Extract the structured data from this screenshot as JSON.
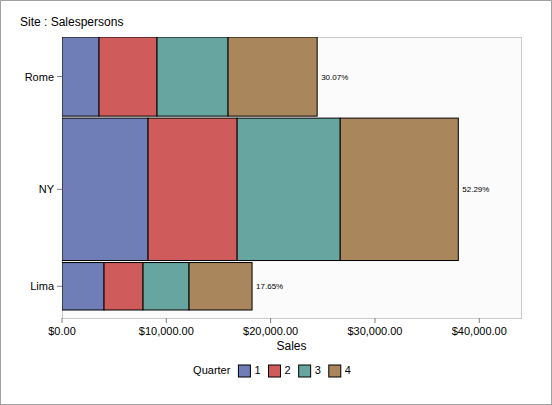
{
  "chart_data": {
    "type": "bar",
    "orientation": "horizontal",
    "stacked": true,
    "title": "Site : Salespersons",
    "xlabel": "Sales",
    "legend_title": "Quarter",
    "legend": "bottom",
    "categories": [
      "Rome",
      "NY",
      "Lima"
    ],
    "salespersons": [
      5,
      9,
      3
    ],
    "series": [
      {
        "name": "1",
        "color": "#6f7eb7",
        "values": [
          3550,
          8250,
          4030
        ]
      },
      {
        "name": "2",
        "color": "#d05b5b",
        "values": [
          5560,
          8540,
          3740
        ]
      },
      {
        "name": "3",
        "color": "#66a5a0",
        "values": [
          6810,
          9880,
          4410
        ]
      },
      {
        "name": "4",
        "color": "#a9865b",
        "values": [
          8540,
          11320,
          6040
        ]
      }
    ],
    "shares": [
      30.07,
      52.29,
      17.65
    ],
    "share_labels": [
      "30.07%",
      "52.29%",
      "17.65%"
    ],
    "xlim": [
      0,
      44000
    ],
    "xticks": [
      {
        "value": 0,
        "label": "$0.00"
      },
      {
        "value": 10000,
        "label": "$10,000.00"
      },
      {
        "value": 20000,
        "label": "$20,000.00"
      },
      {
        "value": 30000,
        "label": "$30,000.00"
      },
      {
        "value": 40000,
        "label": "$40,000.00"
      }
    ]
  }
}
